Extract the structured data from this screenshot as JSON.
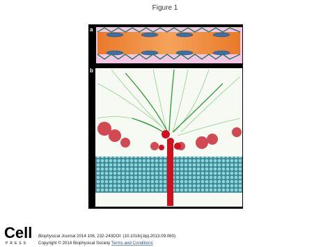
{
  "header": {
    "title": "Figure 1"
  },
  "figure": {
    "panels": [
      {
        "label": "a"
      },
      {
        "label": "b"
      }
    ]
  },
  "logo": {
    "name": "Cell",
    "sub": "PRESS"
  },
  "footer": {
    "journal": "Biophysical Journal",
    "citation": "2014 106, 232-243DOI: (10.1016/j.bpj.2013.09.060)",
    "copyright": "Copyright © 2014 Biophysical Society",
    "link": "Terms and Conditions"
  }
}
